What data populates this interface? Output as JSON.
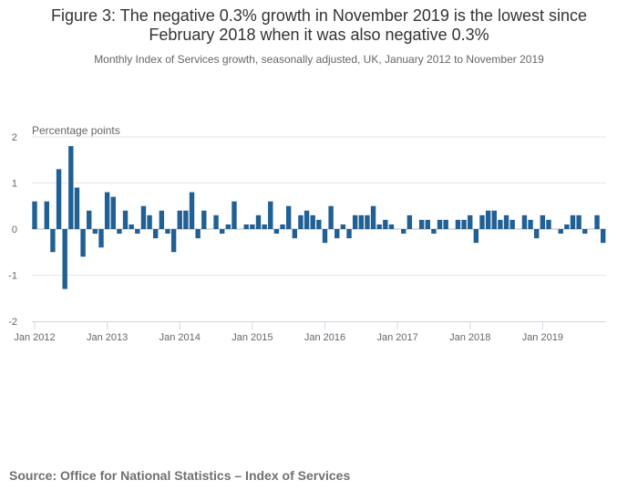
{
  "chart_data": {
    "type": "bar",
    "title": "Figure 3: The negative 0.3% growth in November 2019 is the lowest since February 2018 when it was also negative 0.3%",
    "title_lines": [
      "Figure 3: The negative 0.3% growth in November 2019 is the lowest since",
      "February 2018 when it was also negative 0.3%"
    ],
    "subtitle": "Monthly Index of Services growth, seasonally adjusted, UK, January 2012 to November 2019",
    "ylabel": "Percentage points",
    "xlabel": "",
    "ylim": [
      -2,
      2
    ],
    "yticks": [
      2,
      1,
      0,
      -1,
      -2
    ],
    "grid": true,
    "start": "Jan 2012",
    "xtick_labels": [
      "Jan 2012",
      "Jan 2013",
      "Jan 2014",
      "Jan 2015",
      "Jan 2016",
      "Jan 2017",
      "Jan 2018",
      "Jan 2019"
    ],
    "values": [
      0.6,
      0.0,
      0.6,
      -0.5,
      1.3,
      -1.3,
      1.8,
      0.9,
      -0.6,
      0.4,
      -0.1,
      -0.4,
      0.8,
      0.7,
      -0.1,
      0.4,
      0.1,
      -0.1,
      0.5,
      0.3,
      -0.2,
      0.4,
      -0.1,
      -0.5,
      0.4,
      0.4,
      0.8,
      -0.2,
      0.4,
      0.0,
      0.3,
      -0.1,
      0.1,
      0.6,
      0.0,
      0.1,
      0.1,
      0.3,
      0.1,
      0.6,
      -0.1,
      0.1,
      0.5,
      -0.2,
      0.3,
      0.4,
      0.3,
      0.2,
      -0.3,
      0.5,
      -0.2,
      0.1,
      -0.2,
      0.3,
      0.3,
      0.3,
      0.5,
      0.1,
      0.2,
      0.1,
      0.0,
      -0.1,
      0.3,
      0.0,
      0.2,
      0.2,
      -0.1,
      0.2,
      0.2,
      0.0,
      0.2,
      0.2,
      0.3,
      -0.3,
      0.3,
      0.4,
      0.4,
      0.2,
      0.3,
      0.2,
      0.0,
      0.3,
      0.2,
      -0.2,
      0.3,
      0.2,
      0.0,
      -0.1,
      0.1,
      0.3,
      0.3,
      -0.1,
      0.0,
      0.3,
      -0.3
    ],
    "bar_color": "#206095"
  },
  "source": "Source: Office for National Statistics – Index of Services"
}
